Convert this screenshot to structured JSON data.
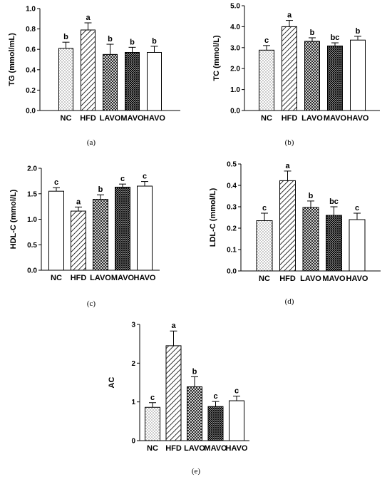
{
  "chart_data": [
    {
      "type": "bar",
      "caption": "(a)",
      "ylabel": "TG (mmol/mL)",
      "categories": [
        "NC",
        "HFD",
        "LAVO",
        "MAVO",
        "HAVO"
      ],
      "values": [
        0.61,
        0.79,
        0.55,
        0.57,
        0.57
      ],
      "errors": [
        0.06,
        0.07,
        0.1,
        0.05,
        0.06
      ],
      "significance": [
        "b",
        "a",
        "b",
        "b",
        "b"
      ],
      "ylim": [
        0,
        1.0
      ],
      "yticks": [
        "0.0",
        "0.2",
        "0.4",
        "0.6",
        "0.8",
        "1.0"
      ],
      "patterns": [
        "dots",
        "diag",
        "cross",
        "dense",
        "none"
      ]
    },
    {
      "type": "bar",
      "caption": "(b)",
      "ylabel": "TC (mmol/L)",
      "categories": [
        "NC",
        "HFD",
        "LAVO",
        "MAVO",
        "HAVO"
      ],
      "values": [
        2.88,
        4.0,
        3.3,
        3.08,
        3.36
      ],
      "errors": [
        0.22,
        0.3,
        0.17,
        0.15,
        0.18
      ],
      "significance": [
        "c",
        "a",
        "b",
        "bc",
        "b"
      ],
      "ylim": [
        0,
        5.0
      ],
      "yticks": [
        "0.0",
        "1.0",
        "2.0",
        "3.0",
        "4.0",
        "5.0"
      ],
      "patterns": [
        "dots",
        "diag",
        "cross",
        "dense",
        "none"
      ]
    },
    {
      "type": "bar",
      "caption": "(c)",
      "ylabel": "HDL-C (mmol/L)",
      "categories": [
        "NC",
        "HFD",
        "LAVO",
        "MAVO",
        "HAVO"
      ],
      "values": [
        1.55,
        1.16,
        1.39,
        1.63,
        1.65
      ],
      "errors": [
        0.07,
        0.08,
        0.09,
        0.06,
        0.09
      ],
      "significance": [
        "c",
        "a",
        "b",
        "c",
        "c"
      ],
      "ylim": [
        0,
        2.0
      ],
      "yticks": [
        "0.0",
        "0.5",
        "1.0",
        "1.5",
        "2.0"
      ],
      "patterns": [
        "none",
        "diag",
        "cross",
        "dense",
        "none"
      ]
    },
    {
      "type": "bar",
      "caption": "(d)",
      "ylabel": "LDL-C (mmol/L)",
      "categories": [
        "NC",
        "HFD",
        "LAVO",
        "MAVO",
        "HAVO"
      ],
      "values": [
        0.235,
        0.422,
        0.297,
        0.26,
        0.24
      ],
      "errors": [
        0.035,
        0.045,
        0.03,
        0.04,
        0.03
      ],
      "significance": [
        "c",
        "a",
        "b",
        "bc",
        "c"
      ],
      "ylim": [
        0,
        0.5
      ],
      "yticks": [
        "0.0",
        "0.1",
        "0.2",
        "0.3",
        "0.4",
        "0.5"
      ],
      "patterns": [
        "dots",
        "diag",
        "cross",
        "dense",
        "none"
      ]
    },
    {
      "type": "bar",
      "caption": "(e)",
      "ylabel": "AC",
      "categories": [
        "NC",
        "HFD",
        "LAVO",
        "MAVO",
        "HAVO"
      ],
      "values": [
        0.86,
        2.45,
        1.39,
        0.88,
        1.03
      ],
      "errors": [
        0.12,
        0.38,
        0.26,
        0.13,
        0.12
      ],
      "significance": [
        "c",
        "a",
        "b",
        "c",
        "c"
      ],
      "ylim": [
        0,
        3
      ],
      "yticks": [
        "0",
        "1",
        "2",
        "3"
      ],
      "patterns": [
        "dots",
        "diag",
        "cross",
        "dense",
        "none"
      ]
    }
  ]
}
